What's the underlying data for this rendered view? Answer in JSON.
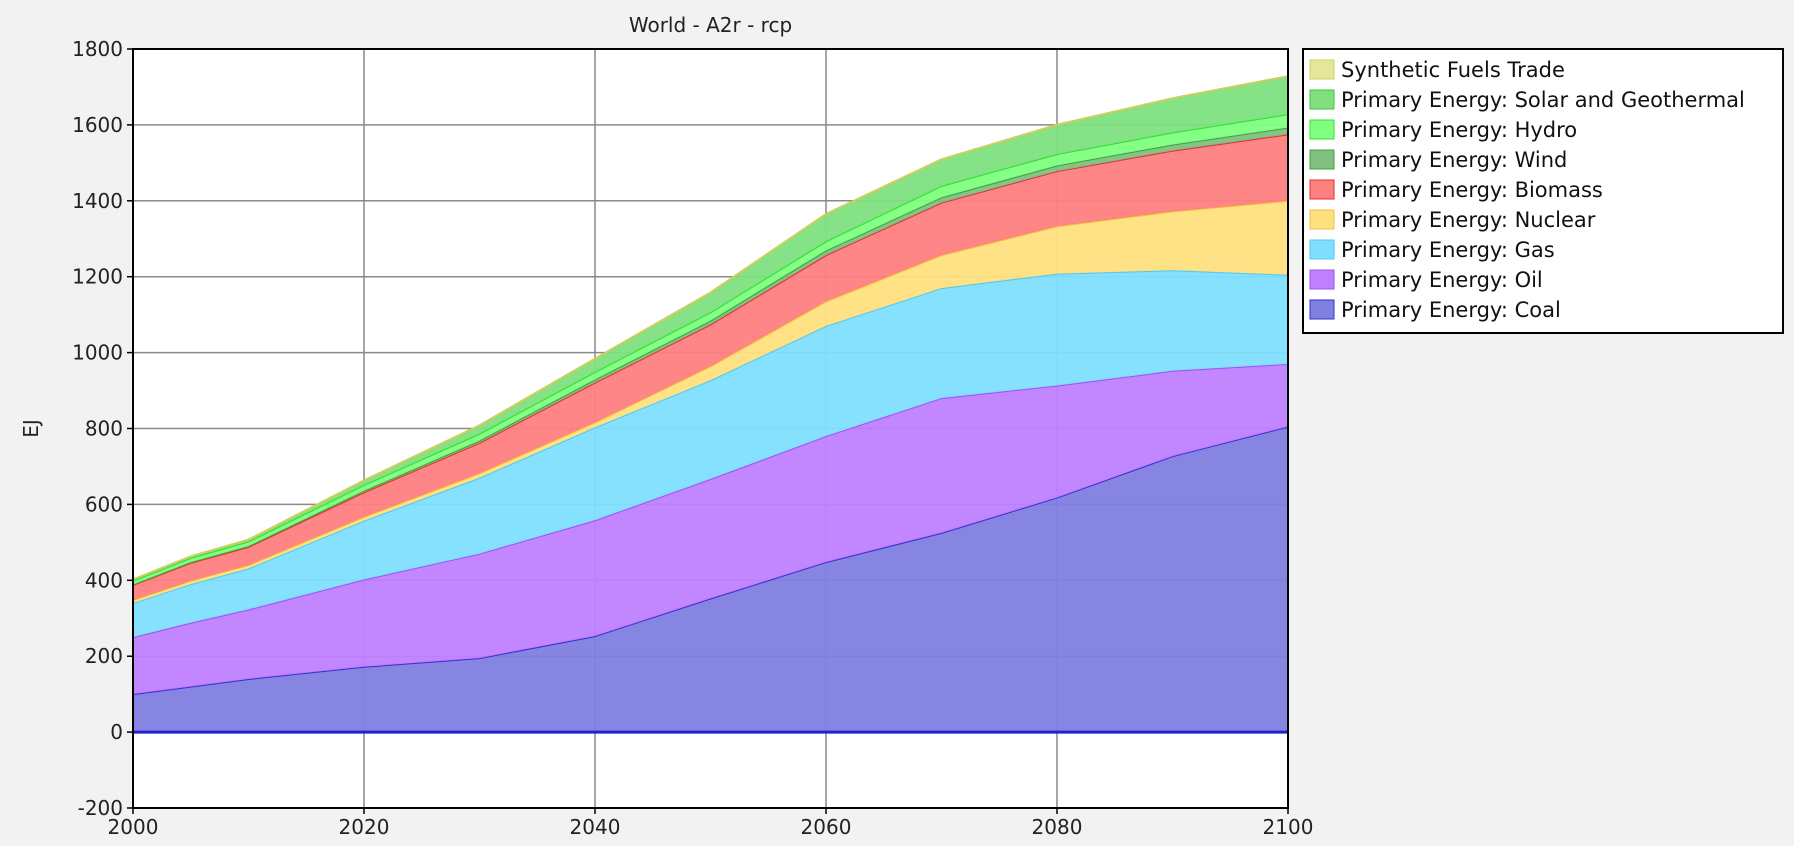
{
  "chart_data": {
    "type": "area",
    "stacked": true,
    "title": "World - A2r - rcp",
    "ylabel": "EJ",
    "xlabel": "",
    "xlim": [
      2000,
      2100
    ],
    "ylim": [
      -200,
      1800
    ],
    "x_ticks": [
      2000,
      2020,
      2040,
      2060,
      2080,
      2100
    ],
    "y_ticks": [
      -200,
      0,
      200,
      400,
      600,
      800,
      1000,
      1200,
      1400,
      1600,
      1800
    ],
    "grid": true,
    "legend_placement": "top-right, outside plot",
    "x": [
      2000,
      2005,
      2010,
      2020,
      2030,
      2040,
      2050,
      2060,
      2070,
      2080,
      2090,
      2100
    ],
    "series": [
      {
        "name": "Primary Energy: Coal",
        "color": "#8080e0",
        "edge": "#3a2ed0",
        "values": [
          100,
          120,
          140,
          172,
          195,
          253,
          352,
          448,
          525,
          618,
          727,
          805
        ]
      },
      {
        "name": "Primary Energy: Oil",
        "color": "#bf80ff",
        "edge": "#a050f0",
        "values": [
          150,
          168,
          183,
          230,
          275,
          305,
          315,
          332,
          355,
          295,
          225,
          165
        ]
      },
      {
        "name": "Primary Energy: Gas",
        "color": "#80dfff",
        "edge": "#50c8f0",
        "values": [
          90,
          102,
          108,
          155,
          200,
          245,
          260,
          290,
          290,
          295,
          265,
          235
        ]
      },
      {
        "name": "Primary Energy: Nuclear",
        "color": "#ffe080",
        "edge": "#f0c040",
        "values": [
          8,
          9,
          9,
          10,
          12,
          13,
          37,
          65,
          87,
          125,
          155,
          195
        ]
      },
      {
        "name": "Primary Energy: Biomass",
        "color": "#ff8080",
        "edge": "#e03030",
        "values": [
          40,
          47,
          48,
          65,
          80,
          105,
          110,
          122,
          138,
          145,
          160,
          175
        ]
      },
      {
        "name": "Primary Energy: Wind",
        "color": "#80c080",
        "edge": "#40a040",
        "values": [
          1,
          2,
          2,
          4,
          6,
          8,
          10,
          12,
          14,
          15,
          16,
          18
        ]
      },
      {
        "name": "Primary Energy: Hydro",
        "color": "#80ff80",
        "edge": "#30e030",
        "values": [
          10,
          11,
          12,
          15,
          18,
          20,
          22,
          24,
          30,
          30,
          32,
          35
        ]
      },
      {
        "name": "Primary Energy: Solar and Geothermal",
        "color": "#80e080",
        "edge": "#40c040",
        "values": [
          3,
          4,
          5,
          12,
          22,
          35,
          52,
          72,
          70,
          77,
          90,
          100
        ]
      },
      {
        "name": "Synthetic Fuels Trade",
        "color": "#e6e699",
        "edge": "#d0d060",
        "values": [
          0,
          0,
          0,
          0,
          0,
          0,
          0,
          0,
          0,
          0,
          0,
          0
        ]
      }
    ]
  }
}
